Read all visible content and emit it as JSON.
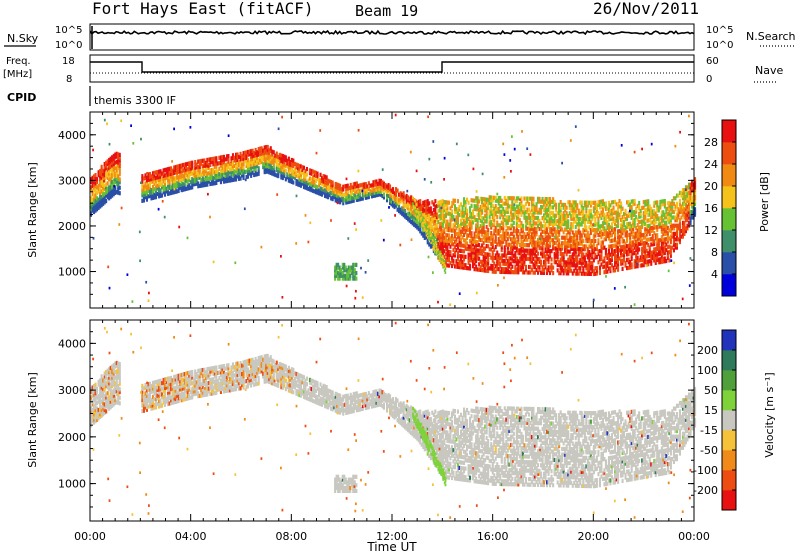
{
  "header": {
    "station": "Fort Hays East (fitACF)",
    "beam": "Beam 19",
    "date": "26/Nov/2011"
  },
  "top_panels": {
    "nsky_label": "N.Sky",
    "nsearch_label": "N.Search",
    "nsky_ticks": [
      "10^5",
      "10^0"
    ],
    "nsearch_ticks": [
      "10^5",
      "10^0"
    ],
    "freq_label": "Freq.",
    "freq_unit": "[MHz]",
    "freq_ticks": [
      "18",
      "8"
    ],
    "nave_label": "Nave",
    "nave_ticks": [
      "60",
      "0"
    ],
    "cpid_label": "CPID",
    "cpid_text": "themis 3300 IF"
  },
  "chart_data": [
    {
      "type": "heatmap",
      "name": "power",
      "ylabel": "Slant Range [km]",
      "yticks": [
        "1000",
        "2000",
        "3000",
        "4000"
      ],
      "ylim": [
        200,
        4500
      ],
      "xlim": [
        0,
        24
      ],
      "xticks": [
        "00:00",
        "04:00",
        "08:00",
        "12:00",
        "16:00",
        "20:00",
        "00:00"
      ],
      "xlabel": "Time UT",
      "colorbar_label": "Power [dB]",
      "colorbar_ticks": [
        "4",
        "8",
        "12",
        "16",
        "20",
        "24",
        "28"
      ],
      "colors": [
        "#0000dd",
        "#2a4fa8",
        "#3f8f6a",
        "#66c233",
        "#f4c21b",
        "#f08a13",
        "#ee4d10",
        "#e81010"
      ],
      "echo_band": [
        {
          "t": 0.0,
          "lo": 2200,
          "hi": 3000
        },
        {
          "t": 1.0,
          "lo": 2700,
          "hi": 3600
        },
        {
          "t": 2.0,
          "lo": 2500,
          "hi": 3050
        },
        {
          "t": 4.0,
          "lo": 2800,
          "hi": 3400
        },
        {
          "t": 6.0,
          "lo": 3000,
          "hi": 3550
        },
        {
          "t": 7.0,
          "lo": 3150,
          "hi": 3700
        },
        {
          "t": 8.5,
          "lo": 2800,
          "hi": 3250
        },
        {
          "t": 10.0,
          "lo": 2450,
          "hi": 2850
        },
        {
          "t": 11.5,
          "lo": 2650,
          "hi": 2950
        },
        {
          "t": 13.0,
          "lo": 1900,
          "hi": 2500
        },
        {
          "t": 14.0,
          "lo": 1100,
          "hi": 2500
        },
        {
          "t": 16.0,
          "lo": 950,
          "hi": 2600
        },
        {
          "t": 20.0,
          "lo": 900,
          "hi": 2500
        },
        {
          "t": 23.0,
          "lo": 1200,
          "hi": 2500
        },
        {
          "t": 24.0,
          "lo": 2200,
          "hi": 3000
        }
      ]
    },
    {
      "type": "heatmap",
      "name": "velocity",
      "ylabel": "Slant Range [km]",
      "yticks": [
        "1000",
        "2000",
        "3000",
        "4000"
      ],
      "ylim": [
        200,
        4500
      ],
      "xlim": [
        0,
        24
      ],
      "xticks": [
        "00:00",
        "04:00",
        "08:00",
        "12:00",
        "16:00",
        "20:00",
        "00:00"
      ],
      "xlabel": "Time UT",
      "colorbar_label": "Velocity [m s⁻¹]",
      "colorbar_ticks": [
        "200",
        "100",
        "50",
        "15",
        "-15",
        "-50",
        "-100",
        "-200"
      ],
      "colors": [
        "#2233bb",
        "#2f7a5a",
        "#4fa03a",
        "#7ed23a",
        "#c8c8c0",
        "#f6c23a",
        "#f08a18",
        "#ee4d12",
        "#e81010"
      ],
      "ground_scatter_color": "#c8c8c0"
    }
  ]
}
